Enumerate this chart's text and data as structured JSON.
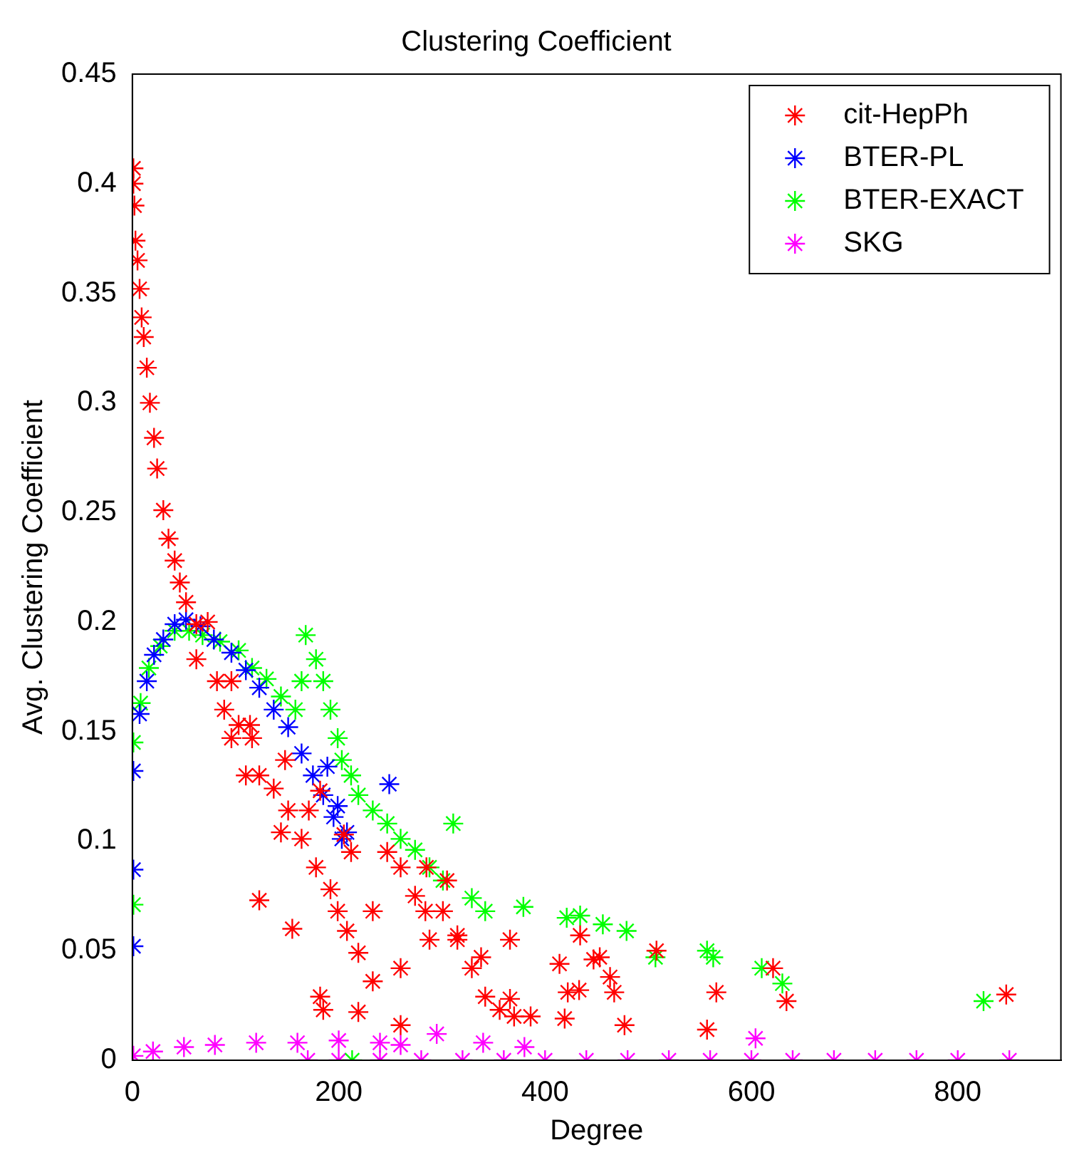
{
  "chart_data": {
    "type": "scatter",
    "title": "Clustering Coefficient",
    "xlabel": "Degree",
    "ylabel": "Avg. Clustering Coefficient",
    "xlim": [
      0,
      900
    ],
    "xticks": [
      0,
      200,
      400,
      600,
      800
    ],
    "ylim": [
      0,
      0.45
    ],
    "yticks": [
      0,
      0.05,
      0.1,
      0.15,
      0.2,
      0.25,
      0.3,
      0.35,
      0.4,
      0.45
    ],
    "grid": false,
    "legend": "top right",
    "marker": "cross",
    "series": [
      {
        "name": "cit-HepPh",
        "color": "#ff0000",
        "x": [
          1,
          1,
          2,
          3,
          5,
          7,
          9,
          11,
          14,
          17,
          21,
          24,
          30,
          35,
          41,
          46,
          52,
          62,
          73,
          62,
          82,
          89,
          96,
          103,
          116,
          110,
          123,
          137,
          151,
          144,
          164,
          178,
          192,
          199,
          208,
          219,
          233,
          185,
          219,
          260,
          212,
          247,
          260,
          274,
          288,
          301,
          315,
          329,
          342,
          370,
          96,
          114,
          148,
          182,
          171,
          205,
          123,
          182,
          155,
          233,
          260,
          284,
          315,
          338,
          356,
          305,
          285,
          366,
          366,
          386,
          414,
          419,
          422,
          433,
          434,
          447,
          453,
          463,
          467,
          477,
          508,
          557,
          566,
          621,
          634,
          847
        ],
        "values": [
          0.407,
          0.4,
          0.39,
          0.374,
          0.365,
          0.352,
          0.339,
          0.33,
          0.316,
          0.3,
          0.284,
          0.27,
          0.251,
          0.238,
          0.228,
          0.218,
          0.209,
          0.199,
          0.2,
          0.183,
          0.173,
          0.16,
          0.147,
          0.153,
          0.147,
          0.13,
          0.13,
          0.124,
          0.114,
          0.104,
          0.101,
          0.088,
          0.078,
          0.068,
          0.059,
          0.049,
          0.036,
          0.023,
          0.022,
          0.016,
          0.095,
          0.095,
          0.088,
          0.075,
          0.055,
          0.068,
          0.055,
          0.042,
          0.029,
          0.02,
          0.173,
          0.153,
          0.137,
          0.123,
          0.114,
          0.103,
          0.073,
          0.029,
          0.06,
          0.068,
          0.042,
          0.068,
          0.057,
          0.047,
          0.023,
          0.082,
          0.088,
          0.055,
          0.028,
          0.02,
          0.044,
          0.019,
          0.031,
          0.032,
          0.057,
          0.046,
          0.047,
          0.038,
          0.031,
          0.016,
          0.05,
          0.014,
          0.031,
          0.042,
          0.027,
          0.03
        ]
      },
      {
        "name": "BTER-PL",
        "color": "#0000ff",
        "x": [
          1,
          1,
          1,
          7,
          14,
          21,
          30,
          41,
          52,
          66,
          79,
          96,
          110,
          123,
          137,
          151,
          164,
          175,
          185,
          195,
          203,
          208,
          199,
          189,
          249
        ],
        "values": [
          0.052,
          0.087,
          0.132,
          0.158,
          0.173,
          0.185,
          0.192,
          0.199,
          0.201,
          0.198,
          0.192,
          0.186,
          0.178,
          0.17,
          0.16,
          0.152,
          0.14,
          0.13,
          0.121,
          0.111,
          0.101,
          0.104,
          0.116,
          0.134,
          0.126
        ]
      },
      {
        "name": "BTER-EXACT",
        "color": "#00ff00",
        "x": [
          1,
          1,
          8,
          16,
          27,
          41,
          55,
          68,
          85,
          103,
          116,
          130,
          144,
          158,
          168,
          178,
          185,
          164,
          192,
          199,
          203,
          212,
          219,
          233,
          247,
          260,
          274,
          288,
          301,
          311,
          329,
          342,
          379,
          421,
          434,
          456,
          479,
          507,
          557,
          563,
          610,
          630,
          825,
          213
        ],
        "values": [
          0.071,
          0.145,
          0.163,
          0.179,
          0.189,
          0.196,
          0.196,
          0.194,
          0.191,
          0.187,
          0.179,
          0.174,
          0.166,
          0.16,
          0.194,
          0.183,
          0.173,
          0.173,
          0.16,
          0.147,
          0.137,
          0.13,
          0.121,
          0.114,
          0.108,
          0.101,
          0.096,
          0.088,
          0.082,
          0.108,
          0.074,
          0.068,
          0.07,
          0.065,
          0.066,
          0.062,
          0.059,
          0.047,
          0.05,
          0.047,
          0.042,
          0.035,
          0.027,
          0
        ]
      },
      {
        "name": "SKG",
        "color": "#ff00ff",
        "x": [
          1,
          20,
          50,
          80,
          120,
          160,
          200,
          240,
          260,
          295,
          340,
          380,
          604,
          170,
          200,
          240,
          280,
          320,
          360,
          400,
          440,
          480,
          520,
          560,
          600,
          640,
          680,
          720,
          760,
          800,
          850
        ],
        "values": [
          0.002,
          0.004,
          0.006,
          0.007,
          0.008,
          0.008,
          0.009,
          0.008,
          0.007,
          0.012,
          0.008,
          0.006,
          0.01,
          0,
          0,
          0,
          0,
          0,
          0,
          0,
          0,
          0,
          0,
          0,
          0,
          0,
          0,
          0,
          0,
          0,
          0
        ]
      }
    ]
  }
}
